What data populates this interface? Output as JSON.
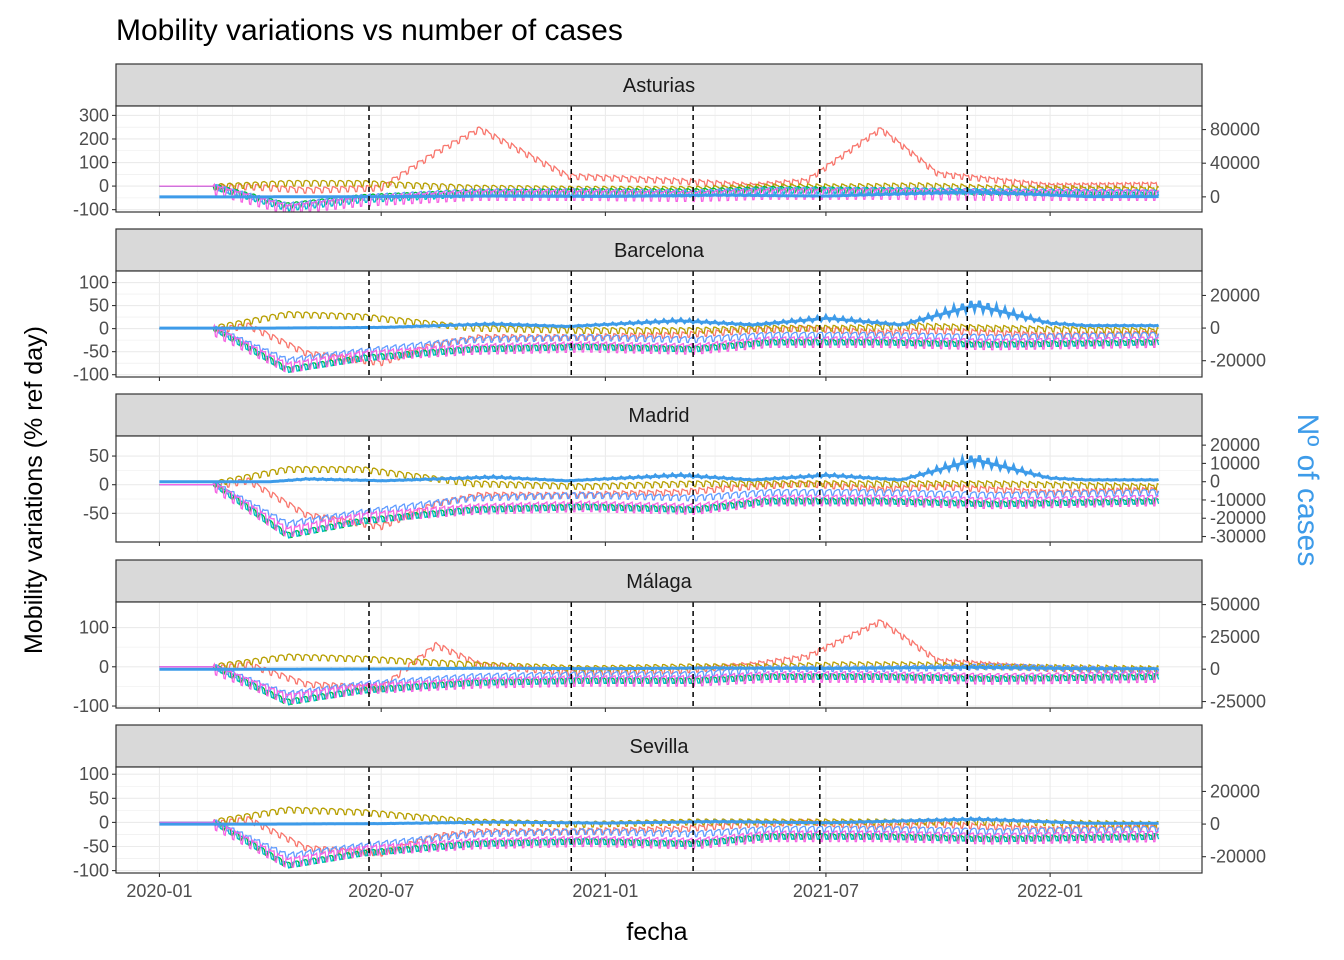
{
  "chart_data": {
    "type": "line",
    "title": "Mobility variations vs number of cases",
    "xlabel": "fecha",
    "ylabel": "Mobility variations (% ref day)",
    "y2label": "Nº of cases",
    "y2color": "#3D9BE9",
    "x_range": [
      "2020-01-01",
      "2022-03-31"
    ],
    "x_ticks": [
      "2020-01",
      "2020-07",
      "2021-01",
      "2021-07",
      "2022-01"
    ],
    "event_dates": [
      "2020-06-21",
      "2020-12-04",
      "2021-03-14",
      "2021-06-26",
      "2021-10-25"
    ],
    "grid": true,
    "legend": "none",
    "series_colors": [
      "#F8766D",
      "#B79F00",
      "#00BA38",
      "#00BFC4",
      "#619CFF",
      "#F564E3"
    ],
    "series": [
      {
        "color": "#F8766D",
        "key": "a",
        "x": [
          "2020-02-15",
          "2020-03-14",
          "2020-05-01",
          "2020-07-01",
          "2020-08-15",
          "2020-09-20",
          "2020-12-01",
          "2021-03-01",
          "2021-05-01",
          "2021-06-15",
          "2021-08-15",
          "2021-10-01",
          "2022-01-01",
          "2022-03-31"
        ]
      },
      {
        "color": "#B79F00",
        "key": "b"
      },
      {
        "color": "#00BA38",
        "key": "c"
      },
      {
        "color": "#00BFC4",
        "key": "d"
      },
      {
        "color": "#619CFF",
        "key": "e"
      },
      {
        "color": "#F564E3",
        "key": "f"
      }
    ],
    "series_keyframes": [
      [
        0,
        1,
        3,
        5,
        6,
        7,
        9,
        12,
        14,
        15,
        17,
        19,
        22,
        25
      ],
      [
        0,
        1,
        3,
        5,
        8,
        11,
        14,
        16,
        18,
        20,
        22,
        25
      ],
      [
        0,
        1,
        3,
        5,
        8,
        11,
        14,
        16,
        19,
        22,
        25
      ],
      [
        0,
        1,
        3,
        5,
        8,
        11,
        14,
        16,
        19,
        22,
        25
      ],
      [
        0,
        1,
        3,
        5,
        8,
        11,
        14,
        16,
        19,
        22,
        25
      ],
      [
        0,
        1,
        3,
        5,
        8,
        11,
        14,
        16,
        19,
        22,
        25
      ]
    ],
    "panels": [
      {
        "name": "Asturias",
        "ylim": [
          -110,
          340
        ],
        "y_ticks": [
          -100,
          0,
          100,
          200,
          300
        ],
        "y2lim": [
          -18000,
          108000
        ],
        "y2_ticks": [
          0,
          40000,
          80000
        ],
        "mobility": {
          "a": [
            0,
            5,
            -10,
            0,
            150,
            250,
            50,
            30,
            10,
            30,
            250,
            60,
            10,
            15
          ],
          "b": [
            0,
            5,
            20,
            20,
            0,
            -5,
            -5,
            5,
            5,
            10,
            0,
            -5
          ],
          "c": [
            0,
            5,
            -75,
            -40,
            -20,
            -15,
            -15,
            -5,
            -10,
            -20,
            -25
          ],
          "d": [
            0,
            5,
            -85,
            -50,
            -25,
            -25,
            -25,
            -10,
            -10,
            -15,
            -20
          ],
          "e": [
            0,
            5,
            -75,
            -40,
            -15,
            -15,
            -20,
            -10,
            -10,
            -15,
            -20
          ],
          "f": [
            0,
            5,
            -80,
            -45,
            -20,
            -20,
            -25,
            -15,
            -15,
            -20,
            -20
          ]
        },
        "cases": [
          [
            0,
            0
          ],
          [
            3,
            0
          ],
          [
            6,
            300
          ],
          [
            9,
            1000
          ],
          [
            12,
            500
          ],
          [
            15,
            2000
          ],
          [
            18,
            1000
          ],
          [
            22,
            6000
          ],
          [
            25,
            300
          ]
        ]
      },
      {
        "name": "Barcelona",
        "ylim": [
          -105,
          125
        ],
        "y_ticks": [
          -100,
          -50,
          0,
          50,
          100
        ],
        "y2lim": [
          -30000,
          35000
        ],
        "y2_ticks": [
          -20000,
          0,
          20000
        ],
        "mobility": {
          "a": [
            0,
            10,
            -50,
            -70,
            -30,
            -15,
            -15,
            -10,
            0,
            5,
            -5,
            0,
            -10,
            -5
          ],
          "b": [
            0,
            5,
            35,
            30,
            5,
            0,
            0,
            5,
            5,
            10,
            5,
            0
          ],
          "c": [
            0,
            5,
            -85,
            -60,
            -40,
            -35,
            -40,
            -25,
            -25,
            -30,
            -25
          ],
          "d": [
            0,
            5,
            -85,
            -60,
            -40,
            -35,
            -40,
            -25,
            -25,
            -30,
            -25
          ],
          "e": [
            0,
            5,
            -65,
            -45,
            -20,
            -15,
            -20,
            -10,
            -10,
            -15,
            -10
          ],
          "f": [
            0,
            5,
            -75,
            -50,
            -35,
            -30,
            -35,
            -20,
            -20,
            -25,
            -20
          ]
        },
        "cases": [
          [
            0,
            0
          ],
          [
            3,
            0
          ],
          [
            6,
            400
          ],
          [
            9,
            2500
          ],
          [
            11,
            1000
          ],
          [
            14,
            4500
          ],
          [
            16,
            2000
          ],
          [
            18,
            6000
          ],
          [
            20,
            2000
          ],
          [
            22,
            14000
          ],
          [
            24,
            3000
          ],
          [
            25,
            1500
          ]
        ]
      },
      {
        "name": "Madrid",
        "ylim": [
          -100,
          85
        ],
        "y_ticks": [
          -50,
          0,
          50
        ],
        "y2lim": [
          -33000,
          25000
        ],
        "y2_ticks": [
          -30000,
          -20000,
          -10000,
          0,
          10000,
          20000
        ],
        "mobility": {
          "a": [
            0,
            10,
            -50,
            -70,
            -30,
            -15,
            -15,
            -10,
            0,
            5,
            -5,
            0,
            -10,
            -5
          ],
          "b": [
            0,
            5,
            30,
            30,
            5,
            0,
            5,
            5,
            5,
            5,
            5,
            0
          ],
          "c": [
            0,
            5,
            -85,
            -60,
            -40,
            -35,
            -40,
            -25,
            -25,
            -30,
            -25
          ],
          "d": [
            0,
            5,
            -85,
            -60,
            -40,
            -35,
            -40,
            -25,
            -25,
            -30,
            -25
          ],
          "e": [
            0,
            5,
            -65,
            -45,
            -20,
            -15,
            -20,
            -10,
            -10,
            -15,
            -10
          ],
          "f": [
            0,
            5,
            -75,
            -50,
            -35,
            -30,
            -35,
            -20,
            -20,
            -25,
            -20
          ]
        },
        "cases": [
          [
            0,
            0
          ],
          [
            3,
            0
          ],
          [
            4,
            1500
          ],
          [
            6,
            500
          ],
          [
            9,
            2500
          ],
          [
            11,
            500
          ],
          [
            14,
            3500
          ],
          [
            16,
            1000
          ],
          [
            18,
            3500
          ],
          [
            20,
            1000
          ],
          [
            22,
            12000
          ],
          [
            24,
            2000
          ],
          [
            25,
            1000
          ]
        ]
      },
      {
        "name": "Málaga",
        "ylim": [
          -105,
          165
        ],
        "y_ticks": [
          -100,
          0,
          100
        ],
        "y2lim": [
          -30000,
          52000
        ],
        "y2_ticks": [
          -25000,
          0,
          25000,
          50000
        ],
        "mobility": {
          "a": [
            0,
            10,
            -40,
            -50,
            60,
            10,
            -10,
            -5,
            10,
            30,
            120,
            20,
            0,
            -5
          ],
          "b": [
            0,
            5,
            30,
            25,
            10,
            0,
            5,
            5,
            10,
            10,
            5,
            0
          ],
          "c": [
            0,
            5,
            -85,
            -55,
            -35,
            -30,
            -30,
            -20,
            -20,
            -25,
            -20
          ],
          "d": [
            0,
            5,
            -85,
            -55,
            -35,
            -30,
            -30,
            -20,
            -20,
            -25,
            -20
          ],
          "e": [
            0,
            5,
            -65,
            -40,
            -20,
            -15,
            -15,
            0,
            0,
            5,
            -5
          ],
          "f": [
            0,
            5,
            -70,
            -45,
            -30,
            -25,
            -25,
            -15,
            -15,
            -20,
            -15
          ]
        },
        "cases": [
          [
            0,
            0
          ],
          [
            3,
            0
          ],
          [
            6,
            200
          ],
          [
            9,
            800
          ],
          [
            12,
            400
          ],
          [
            15,
            1000
          ],
          [
            18,
            600
          ],
          [
            22,
            1500
          ],
          [
            25,
            400
          ]
        ]
      },
      {
        "name": "Sevilla",
        "ylim": [
          -105,
          115
        ],
        "y_ticks": [
          -100,
          -50,
          0,
          50,
          100
        ],
        "y2lim": [
          -30000,
          35000
        ],
        "y2_ticks": [
          -20000,
          0,
          20000
        ],
        "mobility": {
          "a": [
            0,
            10,
            -50,
            -60,
            -25,
            -15,
            -15,
            -10,
            0,
            5,
            -5,
            0,
            -10,
            -5
          ],
          "b": [
            0,
            5,
            30,
            25,
            5,
            0,
            5,
            5,
            5,
            5,
            5,
            0
          ],
          "c": [
            0,
            5,
            -85,
            -60,
            -40,
            -35,
            -40,
            -25,
            -25,
            -30,
            -25
          ],
          "d": [
            0,
            5,
            -85,
            -60,
            -40,
            -35,
            -40,
            -25,
            -25,
            -30,
            -25
          ],
          "e": [
            0,
            5,
            -65,
            -45,
            -20,
            -15,
            -20,
            -10,
            -10,
            -15,
            -10
          ],
          "f": [
            0,
            5,
            -75,
            -50,
            -35,
            -30,
            -35,
            -20,
            -20,
            -25,
            -20
          ]
        },
        "cases": [
          [
            0,
            0
          ],
          [
            3,
            0
          ],
          [
            6,
            300
          ],
          [
            9,
            1200
          ],
          [
            12,
            600
          ],
          [
            15,
            1500
          ],
          [
            18,
            800
          ],
          [
            22,
            3000
          ],
          [
            25,
            500
          ]
        ]
      }
    ]
  }
}
